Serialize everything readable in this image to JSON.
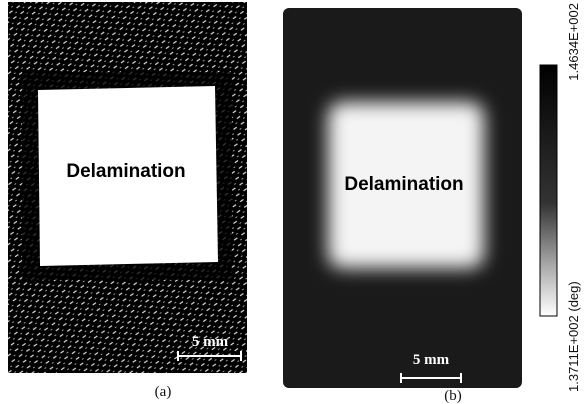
{
  "panel_a": {
    "label": "Delamination",
    "scale_bar": "5 mm",
    "caption": "(a)"
  },
  "panel_b": {
    "label": "Delamination",
    "scale_bar": "5 mm",
    "caption": "(b)",
    "colorbar": {
      "max_label": "1.4634E+002",
      "min_label": "1.3711E+002 (deg)"
    }
  }
}
